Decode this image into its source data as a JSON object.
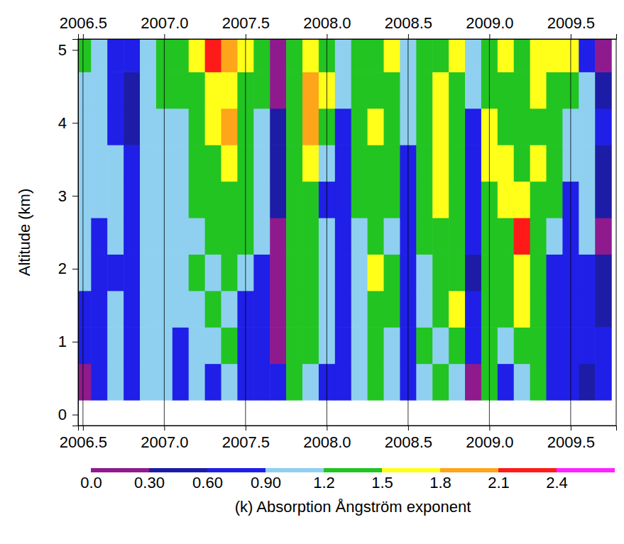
{
  "chart_data": {
    "type": "heatmap",
    "ylabel": "Altitude (km)",
    "xlim": [
      2006.47,
      2009.78
    ],
    "xticks": [
      2006.5,
      {
        "value": 2007.0,
        "label": "2007.0"
      },
      2007.5,
      {
        "value": 2008.0,
        "label": "2008.0"
      },
      2008.5,
      {
        "value": 2009.0,
        "label": "2009.0"
      },
      2009.5
    ],
    "ylim": [
      -0.15,
      5.15
    ],
    "yticks": [
      0,
      1,
      2,
      3,
      4,
      5
    ],
    "grid": true,
    "x": [
      2006.5,
      2006.6,
      2006.7,
      2006.8,
      2006.9,
      2007.0,
      2007.1,
      2007.2,
      2007.3,
      2007.4,
      2007.5,
      2007.6,
      2007.7,
      2007.8,
      2007.9,
      2008.0,
      2008.1,
      2008.2,
      2008.3,
      2008.4,
      2008.5,
      2008.6,
      2008.7,
      2008.8,
      2008.9,
      2009.0,
      2009.1,
      2009.2,
      2009.3,
      2009.4,
      2009.5,
      2009.6,
      2009.7
    ],
    "y": [
      0.45,
      0.95,
      1.45,
      1.95,
      2.45,
      2.95,
      3.45,
      3.95,
      4.45,
      4.95
    ],
    "cells": [
      [
        0.15,
        0.75,
        0.75,
        1.05,
        1.05,
        1.05,
        1.05,
        1.05,
        1.05,
        1.35
      ],
      [
        0.75,
        0.75,
        0.75,
        0.75,
        0.75,
        1.05,
        1.05,
        1.05,
        1.05,
        1.05
      ],
      [
        1.05,
        1.05,
        1.05,
        0.75,
        1.05,
        1.05,
        1.05,
        0.75,
        0.75,
        0.75
      ],
      [
        0.75,
        0.75,
        0.75,
        0.75,
        0.75,
        0.75,
        0.75,
        0.45,
        0.45,
        0.75
      ],
      [
        1.05,
        1.05,
        1.05,
        1.05,
        1.05,
        1.05,
        1.05,
        1.05,
        1.05,
        1.05
      ],
      [
        1.05,
        1.05,
        1.05,
        1.05,
        1.05,
        1.05,
        1.05,
        1.05,
        1.35,
        1.35
      ],
      [
        0.75,
        0.75,
        1.05,
        1.05,
        1.05,
        1.05,
        1.05,
        1.05,
        1.35,
        1.35
      ],
      [
        1.05,
        1.05,
        1.05,
        1.35,
        1.05,
        1.35,
        1.35,
        1.35,
        1.35,
        1.65
      ],
      [
        0.75,
        1.05,
        1.35,
        1.05,
        1.35,
        1.35,
        1.35,
        1.65,
        1.65,
        2.25
      ],
      [
        1.05,
        1.35,
        1.05,
        1.35,
        1.35,
        1.35,
        1.65,
        1.95,
        1.65,
        1.95
      ],
      [
        0.75,
        0.75,
        0.75,
        1.05,
        1.35,
        1.35,
        1.35,
        1.35,
        1.35,
        1.65
      ],
      [
        0.75,
        0.75,
        0.75,
        0.75,
        1.05,
        1.05,
        1.05,
        1.05,
        1.35,
        1.35
      ],
      [
        0.75,
        0.15,
        0.15,
        0.15,
        0.15,
        0.45,
        0.45,
        0.45,
        0.15,
        0.15
      ],
      [
        1.35,
        1.35,
        1.35,
        1.35,
        1.35,
        1.35,
        1.35,
        1.35,
        1.35,
        1.35
      ],
      [
        1.05,
        1.35,
        1.35,
        1.35,
        1.35,
        1.35,
        1.65,
        1.95,
        1.95,
        1.65
      ],
      [
        0.75,
        1.05,
        1.05,
        1.05,
        1.05,
        0.75,
        1.05,
        1.35,
        1.65,
        1.35
      ],
      [
        0.75,
        0.75,
        0.75,
        0.75,
        0.75,
        0.75,
        0.75,
        0.75,
        1.05,
        1.05
      ],
      [
        1.05,
        1.05,
        1.05,
        1.05,
        1.05,
        1.35,
        1.35,
        1.35,
        1.35,
        1.35
      ],
      [
        1.35,
        1.35,
        1.35,
        1.65,
        1.35,
        1.35,
        1.35,
        1.65,
        1.35,
        1.35
      ],
      [
        1.05,
        1.05,
        1.35,
        1.35,
        1.05,
        1.35,
        1.35,
        1.35,
        1.35,
        1.65
      ],
      [
        0.75,
        0.75,
        0.75,
        0.75,
        0.75,
        0.75,
        0.75,
        1.05,
        1.05,
        1.05
      ],
      [
        1.05,
        1.35,
        1.05,
        1.05,
        1.35,
        1.35,
        1.35,
        1.35,
        1.35,
        1.35
      ],
      [
        1.35,
        1.05,
        1.35,
        1.35,
        1.35,
        1.65,
        1.65,
        1.65,
        1.65,
        1.35
      ],
      [
        1.05,
        1.35,
        1.65,
        1.35,
        1.35,
        1.35,
        1.35,
        1.35,
        1.35,
        1.65
      ],
      [
        0.15,
        0.75,
        0.75,
        0.45,
        0.75,
        0.75,
        0.75,
        0.75,
        1.05,
        1.05
      ],
      [
        1.35,
        1.35,
        1.35,
        1.35,
        1.35,
        1.35,
        1.65,
        1.65,
        1.35,
        1.35
      ],
      [
        0.75,
        1.05,
        1.35,
        1.35,
        1.35,
        1.65,
        1.65,
        1.35,
        1.35,
        1.65
      ],
      [
        1.05,
        1.35,
        1.65,
        1.65,
        2.25,
        1.65,
        1.35,
        1.35,
        1.35,
        1.35
      ],
      [
        1.35,
        1.35,
        1.35,
        1.35,
        1.35,
        1.35,
        1.65,
        1.35,
        1.65,
        1.65
      ],
      [
        0.75,
        0.75,
        0.75,
        0.75,
        1.05,
        1.35,
        1.35,
        1.35,
        1.35,
        1.65
      ],
      [
        0.75,
        0.75,
        0.75,
        0.75,
        0.75,
        0.75,
        1.05,
        1.05,
        1.35,
        1.65
      ],
      [
        0.45,
        0.75,
        0.75,
        0.75,
        1.05,
        1.05,
        1.05,
        1.05,
        1.05,
        0.75
      ],
      [
        0.75,
        0.75,
        0.45,
        0.45,
        0.15,
        0.45,
        0.45,
        0.75,
        0.45,
        0.15
      ]
    ],
    "colorbar": {
      "label": "(k) Absorption Ångström exponent",
      "range": [
        0,
        2.7
      ],
      "levels": [
        0,
        0.3,
        0.6,
        0.9,
        1.2,
        1.5,
        1.8,
        2.1,
        2.4,
        2.7
      ],
      "colors": [
        "#8e1a8e",
        "#1c1ca6",
        "#1f1fe8",
        "#8fd0f0",
        "#22c422",
        "#ffff1a",
        "#ffa51a",
        "#ff1a1a",
        "#ff22ff"
      ],
      "ticks": [
        {
          "value": 0,
          "label": "0.0"
        },
        {
          "value": 0.3,
          "label": "0.30"
        },
        {
          "value": 0.6,
          "label": "0.60"
        },
        {
          "value": 0.9,
          "label": "0.90"
        },
        1.2,
        1.5,
        1.8,
        2.1,
        2.4
      ]
    }
  }
}
